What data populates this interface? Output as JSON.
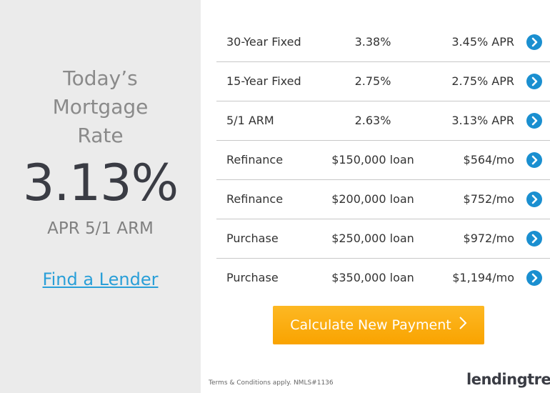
{
  "left": {
    "heading_line1": "Today’s",
    "heading_line2": "Mortgage",
    "heading_line3": "Rate",
    "rate": "3.13%",
    "rate_label": "APR 5/1 ARM",
    "find_lender": "Find a Lender"
  },
  "rates": [
    {
      "product": "30-Year Fixed",
      "rate": "3.38%",
      "value": "3.45% APR"
    },
    {
      "product": "15-Year Fixed",
      "rate": "2.75%",
      "value": "2.75% APR"
    },
    {
      "product": "5/1 ARM",
      "rate": "2.63%",
      "value": "3.13% APR"
    },
    {
      "product": "Refinance",
      "rate": "$150,000 loan",
      "value": "$564/mo"
    },
    {
      "product": "Refinance",
      "rate": "$200,000 loan",
      "value": "$752/mo"
    },
    {
      "product": "Purchase",
      "rate": "$250,000 loan",
      "value": "$972/mo"
    },
    {
      "product": "Purchase",
      "rate": "$350,000 loan",
      "value": "$1,194/mo"
    }
  ],
  "cta": {
    "label": "Calculate New Payment"
  },
  "footer": {
    "terms": "Terms & Conditions apply. NMLS#1136",
    "logo": "lendingtree",
    "logo_mark": "®"
  },
  "colors": {
    "accent_blue": "#1a8fd0",
    "cta_orange": "#f9a300",
    "link_blue": "#2a9fd8",
    "logo_green": "#7bbf2a"
  },
  "icons": {
    "row_action": "chevron-right-circle-icon",
    "cta": "chevron-right-icon"
  }
}
